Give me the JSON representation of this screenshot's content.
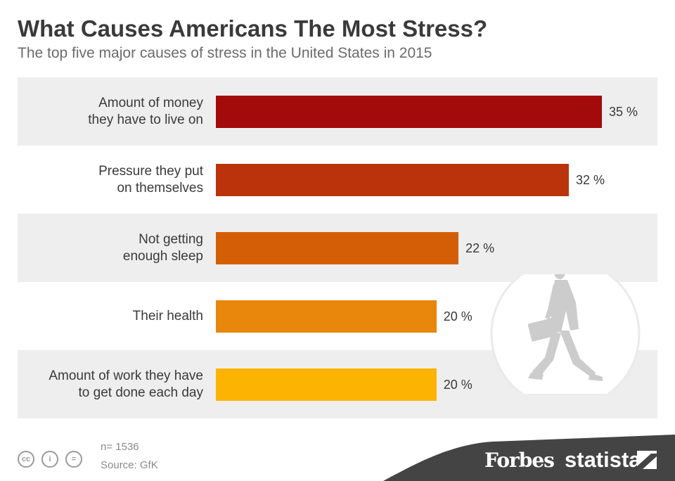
{
  "header": {
    "title": "What Causes Americans The Most Stress?",
    "subtitle": "The top five major causes of stress in the United States in 2015"
  },
  "chart_data": {
    "type": "bar",
    "orientation": "horizontal",
    "title": "What Causes Americans The Most Stress?",
    "subtitle": "The top five major causes of stress in the United States in 2015",
    "categories": [
      [
        "Amount of money",
        "they have to live on"
      ],
      [
        "Pressure they put",
        "on themselves"
      ],
      [
        "Not getting",
        "enough sleep"
      ],
      [
        "Their health"
      ],
      [
        "Amount of work they have",
        "to get done each day"
      ]
    ],
    "values": [
      35,
      32,
      22,
      20,
      20
    ],
    "value_labels": [
      "35 %",
      "32 %",
      "22 %",
      "20 %",
      "20 %"
    ],
    "bar_colors": [
      "#a30b0b",
      "#bb330b",
      "#d45e06",
      "#e8870c",
      "#fdb302"
    ],
    "xlim": [
      0,
      35
    ],
    "grid": false,
    "legend": "none"
  },
  "footer": {
    "n": "n= 1536",
    "source": "Source: GfK",
    "license_icons": [
      "cc-icon",
      "by-icon",
      "nd-icon"
    ],
    "license_glyphs": [
      "cc",
      "i",
      "="
    ],
    "brand_left": "Forbes",
    "brand_right": "statista"
  },
  "colors": {
    "band": "#444444",
    "row_shade": "#eeeeee",
    "illustration": "#cccccc"
  }
}
